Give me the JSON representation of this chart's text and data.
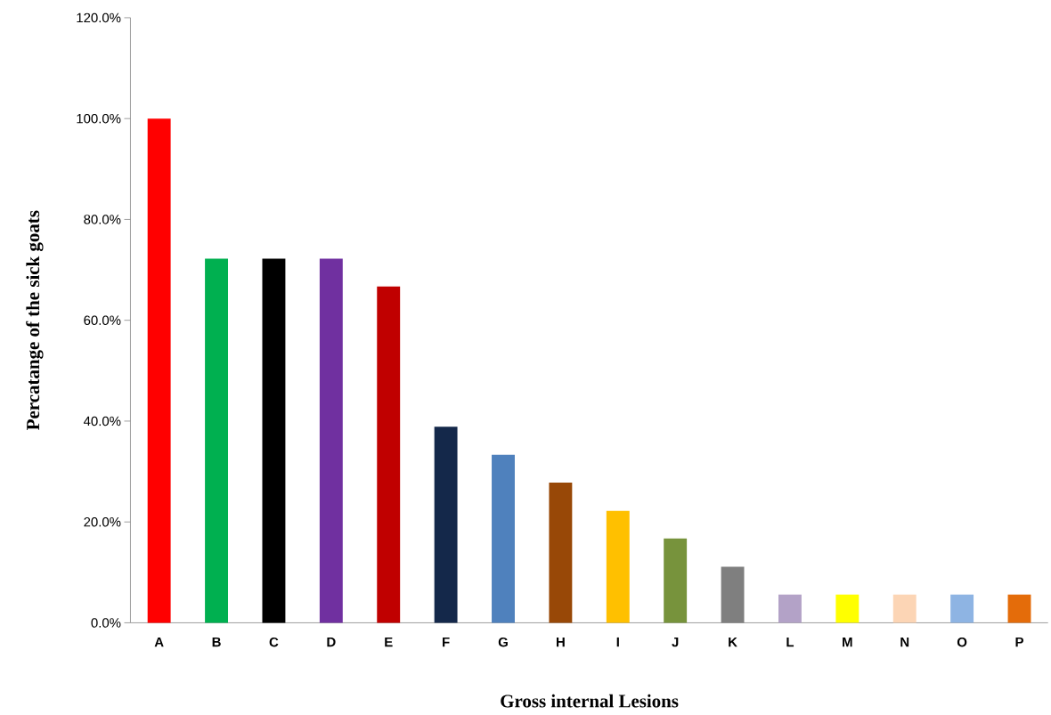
{
  "chart_data": {
    "type": "bar",
    "xlabel": "Gross internal Lesions",
    "ylabel": "Percatange of the sick goats",
    "categories": [
      "A",
      "B",
      "C",
      "D",
      "E",
      "F",
      "G",
      "H",
      "I",
      "J",
      "K",
      "L",
      "M",
      "N",
      "O",
      "P"
    ],
    "values": [
      100,
      72.2,
      72.2,
      72.2,
      66.7,
      38.9,
      33.3,
      27.8,
      22.2,
      16.7,
      11.1,
      5.6,
      5.6,
      5.6,
      5.6,
      5.6
    ],
    "colors": [
      "#ff0000",
      "#00b050",
      "#000000",
      "#7030a0",
      "#c00000",
      "#14284a",
      "#4f81bd",
      "#984807",
      "#ffc000",
      "#77933c",
      "#7f7f7f",
      "#b3a2c7",
      "#ffff00",
      "#fcd5b5",
      "#8eb4e3",
      "#e46c0a"
    ],
    "ylim": [
      0,
      120
    ],
    "yticks": [
      {
        "value": 0,
        "label": "0.0%"
      },
      {
        "value": 20,
        "label": "20.0%"
      },
      {
        "value": 40,
        "label": "40.0%"
      },
      {
        "value": 60,
        "label": "60.0%"
      },
      {
        "value": 80,
        "label": "80.0%"
      },
      {
        "value": 100,
        "label": "100.0%"
      },
      {
        "value": 120,
        "label": "120.0%"
      }
    ]
  }
}
